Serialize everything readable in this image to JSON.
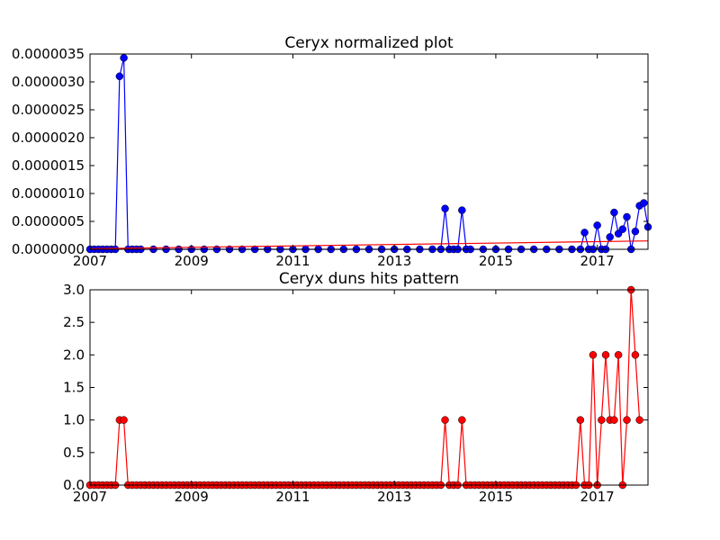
{
  "chart_data": [
    {
      "type": "line",
      "title": "Ceryx normalized plot",
      "xlabel": "",
      "ylabel": "",
      "xlim": [
        2007,
        2018
      ],
      "ylim": [
        0,
        3.5e-06
      ],
      "x_ticks": [
        "2007",
        "2009",
        "2011",
        "2013",
        "2015",
        "2017"
      ],
      "y_ticks": [
        "0.0000000",
        "0.0000005",
        "0.0000010",
        "0.0000015",
        "0.0000020",
        "0.0000025",
        "0.0000030",
        "0.0000035"
      ],
      "grid": false,
      "series": [
        {
          "color": "#0000ff",
          "marker": "circle",
          "points": [
            [
              2007.0,
              0
            ],
            [
              2007.083,
              0
            ],
            [
              2007.167,
              0
            ],
            [
              2007.25,
              0
            ],
            [
              2007.333,
              0
            ],
            [
              2007.417,
              0
            ],
            [
              2007.5,
              0
            ],
            [
              2007.583,
              3.1e-06
            ],
            [
              2007.667,
              3.43e-06
            ],
            [
              2007.75,
              0
            ],
            [
              2007.833,
              0
            ],
            [
              2007.917,
              0
            ],
            [
              2008.0,
              0
            ],
            [
              2008.25,
              0
            ],
            [
              2008.5,
              0
            ],
            [
              2008.75,
              0
            ],
            [
              2009.0,
              0
            ],
            [
              2009.25,
              0
            ],
            [
              2009.5,
              0
            ],
            [
              2009.75,
              0
            ],
            [
              2010.0,
              0
            ],
            [
              2010.25,
              0
            ],
            [
              2010.5,
              0
            ],
            [
              2010.75,
              0
            ],
            [
              2011.0,
              0
            ],
            [
              2011.25,
              0
            ],
            [
              2011.5,
              0
            ],
            [
              2011.75,
              0
            ],
            [
              2012.0,
              0
            ],
            [
              2012.25,
              0
            ],
            [
              2012.5,
              0
            ],
            [
              2012.75,
              0
            ],
            [
              2013.0,
              0
            ],
            [
              2013.25,
              0
            ],
            [
              2013.5,
              0
            ],
            [
              2013.75,
              0
            ],
            [
              2013.917,
              0
            ],
            [
              2014.0,
              7.3e-07
            ],
            [
              2014.083,
              0
            ],
            [
              2014.167,
              0
            ],
            [
              2014.25,
              0
            ],
            [
              2014.333,
              7e-07
            ],
            [
              2014.417,
              0
            ],
            [
              2014.5,
              0
            ],
            [
              2014.75,
              0
            ],
            [
              2015.0,
              0
            ],
            [
              2015.25,
              0
            ],
            [
              2015.5,
              0
            ],
            [
              2015.75,
              0
            ],
            [
              2016.0,
              0
            ],
            [
              2016.25,
              0
            ],
            [
              2016.5,
              0
            ],
            [
              2016.667,
              0
            ],
            [
              2016.75,
              3e-07
            ],
            [
              2016.833,
              0
            ],
            [
              2016.917,
              0
            ],
            [
              2017.0,
              4.3e-07
            ],
            [
              2017.083,
              0
            ],
            [
              2017.167,
              0
            ],
            [
              2017.25,
              2.2e-07
            ],
            [
              2017.333,
              6.6e-07
            ],
            [
              2017.417,
              2.8e-07
            ],
            [
              2017.5,
              3.6e-07
            ],
            [
              2017.583,
              5.8e-07
            ],
            [
              2017.667,
              0
            ],
            [
              2017.75,
              3.2e-07
            ],
            [
              2017.833,
              7.8e-07
            ],
            [
              2017.917,
              8.3e-07
            ],
            [
              2018.0,
              4e-07
            ]
          ]
        },
        {
          "color": "#ff0000",
          "marker": "none",
          "points": [
            [
              2007.0,
              1e-08
            ],
            [
              2018.0,
              1.5e-07
            ]
          ]
        }
      ]
    },
    {
      "type": "line",
      "title": "Ceryx duns hits pattern",
      "xlabel": "",
      "ylabel": "",
      "xlim": [
        2007,
        2018
      ],
      "ylim": [
        0,
        3
      ],
      "x_ticks": [
        "2007",
        "2009",
        "2011",
        "2013",
        "2015",
        "2017"
      ],
      "y_ticks": [
        "0.0",
        "0.5",
        "1.0",
        "1.5",
        "2.0",
        "2.5",
        "3.0"
      ],
      "grid": false,
      "series": [
        {
          "color": "#ff0000",
          "marker": "circle",
          "monthly_start": 2007.0,
          "monthly_values": [
            0,
            0,
            0,
            0,
            0,
            0,
            0,
            1,
            1,
            0,
            0,
            0,
            0,
            0,
            0,
            0,
            0,
            0,
            0,
            0,
            0,
            0,
            0,
            0,
            0,
            0,
            0,
            0,
            0,
            0,
            0,
            0,
            0,
            0,
            0,
            0,
            0,
            0,
            0,
            0,
            0,
            0,
            0,
            0,
            0,
            0,
            0,
            0,
            0,
            0,
            0,
            0,
            0,
            0,
            0,
            0,
            0,
            0,
            0,
            0,
            0,
            0,
            0,
            0,
            0,
            0,
            0,
            0,
            0,
            0,
            0,
            0,
            0,
            0,
            0,
            0,
            0,
            0,
            0,
            0,
            0,
            0,
            0,
            0,
            1,
            0,
            0,
            0,
            1,
            0,
            0,
            0,
            0,
            0,
            0,
            0,
            0,
            0,
            0,
            0,
            0,
            0,
            0,
            0,
            0,
            0,
            0,
            0,
            0,
            0,
            0,
            0,
            0,
            0,
            0,
            0,
            1,
            0,
            0,
            2,
            0,
            1,
            2,
            1,
            1,
            2,
            0,
            1,
            3,
            2,
            1
          ]
        }
      ]
    }
  ]
}
